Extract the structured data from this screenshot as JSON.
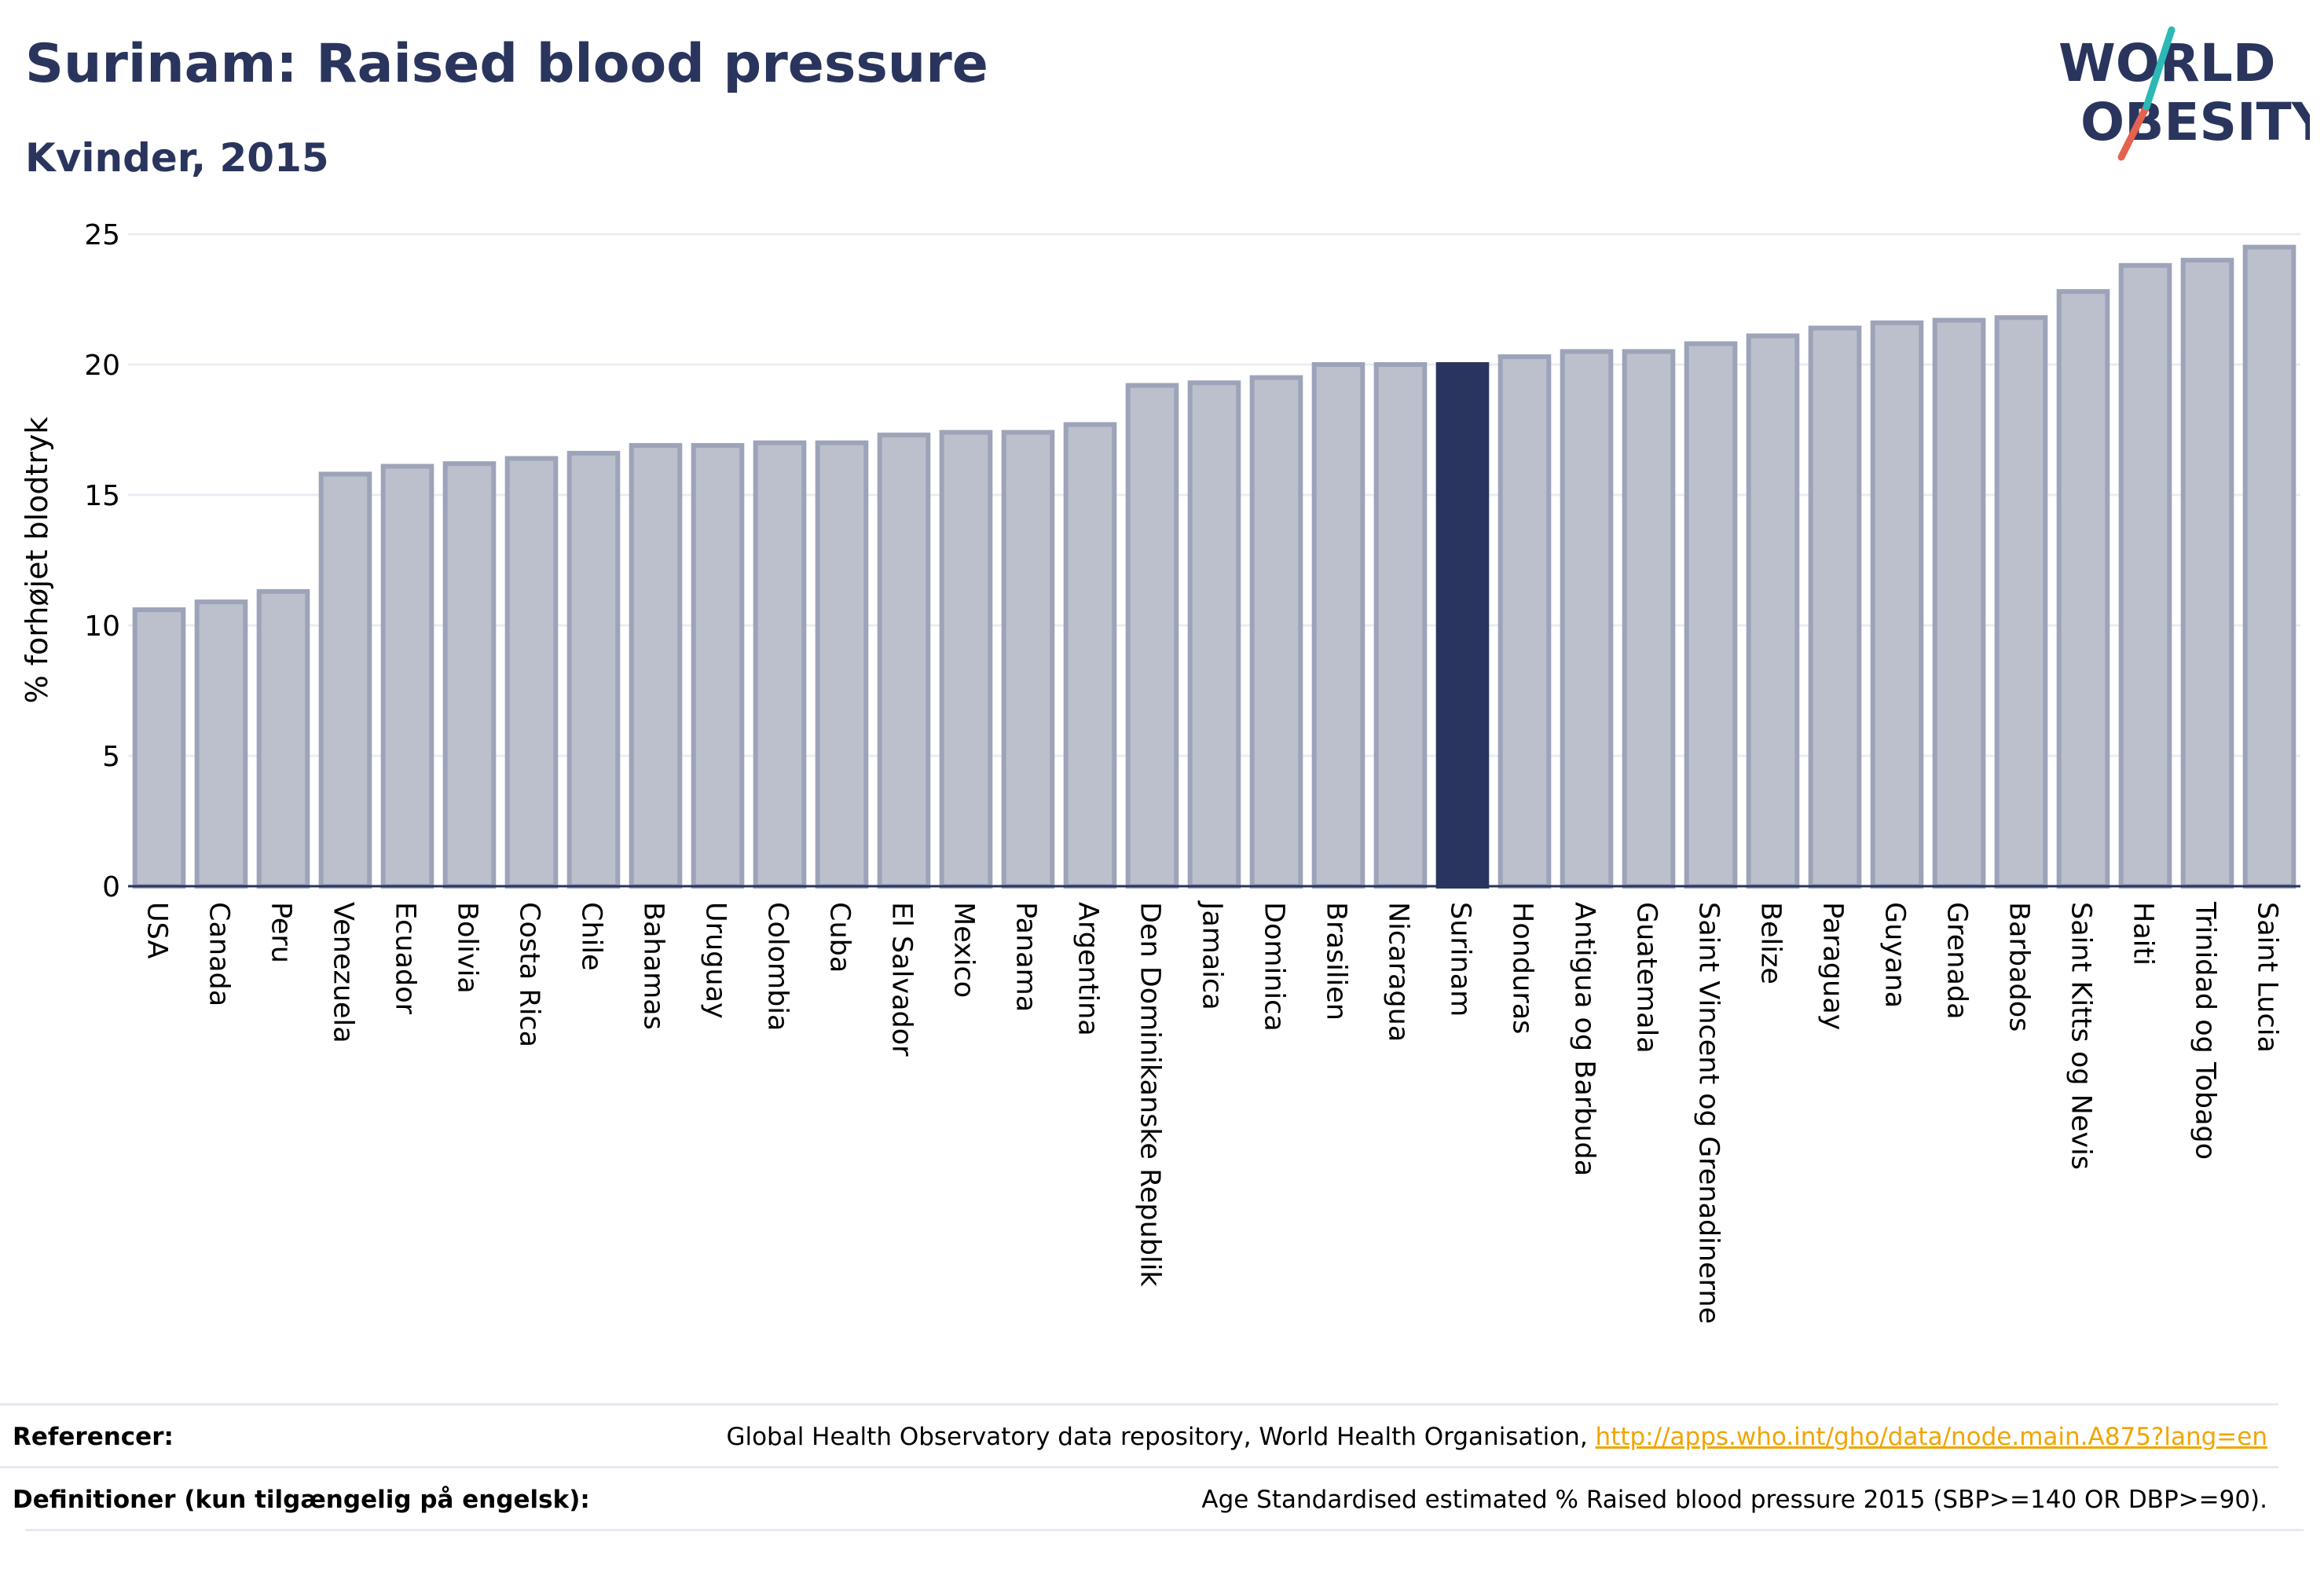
{
  "title": "Surinam: Raised blood pressure",
  "subtitle": "Kvinder, 2015",
  "logo": {
    "line1": "WORLD",
    "line2": "OBESITY"
  },
  "colors": {
    "title": "#2a355e",
    "bar": "#bcc0cd",
    "bar_border": "#9da3b8",
    "highlight": "#29355f",
    "grid": "#e9ecf3",
    "link": "#f0a500"
  },
  "chart_data": {
    "type": "bar",
    "ylabel": "% forhøjet blodtryk",
    "ylim": [
      0,
      25
    ],
    "yticks": [
      0,
      5,
      10,
      15,
      20,
      25
    ],
    "grid": true,
    "highlight": "Surinam",
    "categories": [
      "USA",
      "Canada",
      "Peru",
      "Venezuela",
      "Ecuador",
      "Bolivia",
      "Costa Rica",
      "Chile",
      "Bahamas",
      "Uruguay",
      "Colombia",
      "Cuba",
      "El Salvador",
      "Mexico",
      "Panama",
      "Argentina",
      "Den Dominikanske Republik",
      "Jamaica",
      "Dominica",
      "Brasilien",
      "Nicaragua",
      "Surinam",
      "Honduras",
      "Antigua og Barbuda",
      "Guatemala",
      "Saint Vincent og Grenadinerne",
      "Belize",
      "Paraguay",
      "Guyana",
      "Grenada",
      "Barbados",
      "Saint Kitts og Nevis",
      "Haiti",
      "Trinidad og Tobago",
      "Saint Lucia"
    ],
    "values": [
      10.6,
      10.9,
      11.3,
      15.8,
      16.1,
      16.2,
      16.4,
      16.6,
      16.9,
      16.9,
      17.0,
      17.0,
      17.3,
      17.4,
      17.4,
      17.7,
      19.2,
      19.3,
      19.5,
      20.0,
      20.0,
      20.0,
      20.3,
      20.5,
      20.5,
      20.8,
      21.1,
      21.4,
      21.6,
      21.7,
      21.8,
      22.8,
      23.8,
      24.0,
      24.5
    ]
  },
  "references": {
    "label": "Referencer:",
    "text": "Global Health Observatory data repository, World Health Organisation,",
    "link": "http://apps.who.int/gho/data/node.main.A875?lang=en"
  },
  "definitions": {
    "label": "Definitioner (kun tilgængelig på engelsk):",
    "text": "Age Standardised estimated % Raised blood pressure 2015 (SBP>=140 OR DBP>=90)."
  }
}
